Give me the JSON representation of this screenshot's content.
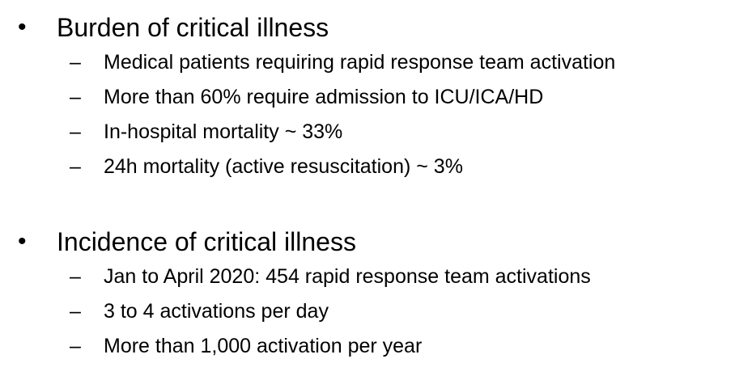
{
  "sections": [
    {
      "bullet": "•",
      "title": "Burden of critical illness",
      "dash": "–",
      "items": [
        "Medical patients requiring rapid response team activation",
        "More than 60% require admission to ICU/ICA/HD",
        "In-hospital mortality ~ 33%",
        "24h mortality (active resuscitation) ~ 3%"
      ]
    },
    {
      "bullet": "•",
      "title": "Incidence of critical illness",
      "dash": "–",
      "items": [
        "Jan to April 2020: 454 rapid response team activations",
        "3 to 4 activations per day",
        "More than 1,000 activation per year"
      ]
    }
  ]
}
